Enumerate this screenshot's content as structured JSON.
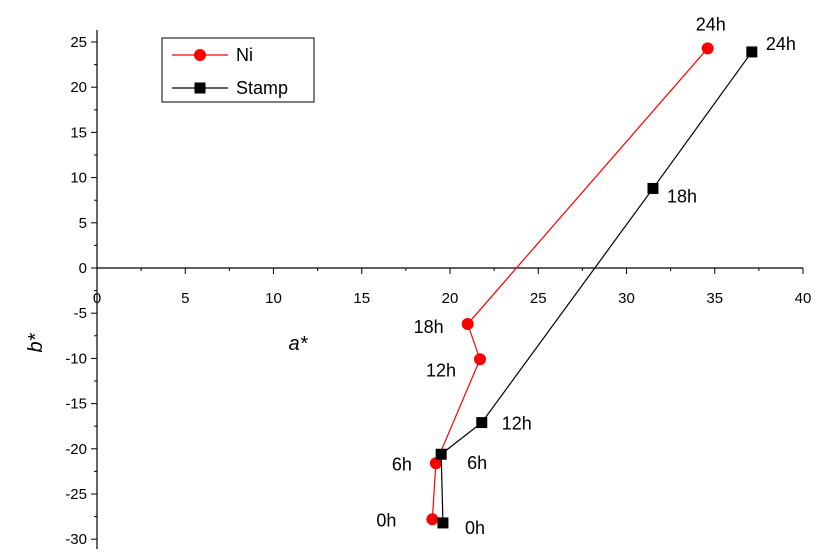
{
  "chart_data": {
    "type": "scatter",
    "xlabel": "a*",
    "ylabel": "b*",
    "xlim": [
      0,
      40
    ],
    "ylim": [
      -31,
      26
    ],
    "xticks": [
      "0",
      "5",
      "10",
      "15",
      "20",
      "25",
      "30",
      "35",
      "40"
    ],
    "yticks": [
      "25",
      "20",
      "15",
      "10",
      "5",
      "0",
      "-5",
      "-10",
      "-15",
      "-20",
      "-25",
      "-30"
    ],
    "grid": false,
    "legend_position": "top-left",
    "series": [
      {
        "name": "Ni",
        "color": "#ff0000",
        "marker": "circle",
        "points": [
          {
            "x": 19.0,
            "y": -27.8,
            "label": "0h"
          },
          {
            "x": 19.2,
            "y": -21.6,
            "label": "6h"
          },
          {
            "x": 21.7,
            "y": -10.1,
            "label": "12h"
          },
          {
            "x": 21.0,
            "y": -6.2,
            "label": "18h"
          },
          {
            "x": 34.6,
            "y": 24.3,
            "label": "24h"
          }
        ]
      },
      {
        "name": "Stamp",
        "color": "#000000",
        "marker": "square",
        "points": [
          {
            "x": 19.6,
            "y": -28.2,
            "label": "0h"
          },
          {
            "x": 19.5,
            "y": -20.6,
            "label": "6h"
          },
          {
            "x": 21.8,
            "y": -17.1,
            "label": "12h"
          },
          {
            "x": 31.5,
            "y": 8.8,
            "label": "18h"
          },
          {
            "x": 37.1,
            "y": 23.9,
            "label": "24h"
          }
        ]
      }
    ]
  }
}
